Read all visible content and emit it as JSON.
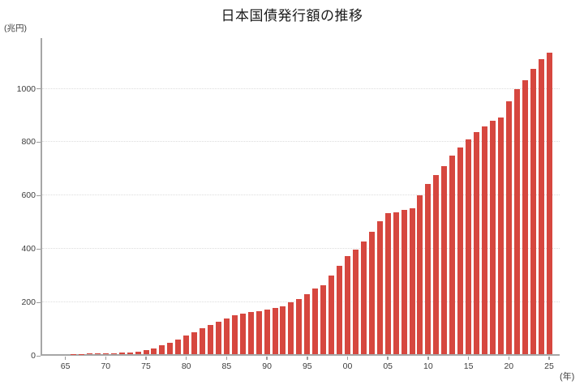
{
  "title": "日本国債発行額の推移",
  "y_unit": "(兆円)",
  "x_unit": "(年)",
  "colors": {
    "bar": "#d6473f",
    "axis": "#a6a6a6",
    "grid": "#dcdcdc",
    "tick_text": "#3d3d3d",
    "title_text": "#1b1b1b",
    "background": "#ffffff"
  },
  "chart_data": {
    "type": "bar",
    "title": "日本国債発行額の推移",
    "ylabel": "(兆円)",
    "xlabel": "(年)",
    "ylim": [
      0,
      1190
    ],
    "grid": "horizontal-dotted",
    "legend": "none",
    "y_ticks": [
      0,
      200,
      400,
      600,
      800,
      1000
    ],
    "x_tick_years": [
      1965,
      1970,
      1975,
      1980,
      1985,
      1990,
      1995,
      2000,
      2005,
      2010,
      2015,
      2020,
      2025
    ],
    "x_tick_labels": [
      "65",
      "70",
      "75",
      "80",
      "85",
      "90",
      "95",
      "00",
      "05",
      "10",
      "15",
      "20",
      "25"
    ],
    "x_start_year": 1965,
    "x_end_year": 2025,
    "years": [
      1965,
      1966,
      1967,
      1968,
      1969,
      1970,
      1971,
      1972,
      1973,
      1974,
      1975,
      1976,
      1977,
      1978,
      1979,
      1980,
      1981,
      1982,
      1983,
      1984,
      1985,
      1986,
      1987,
      1988,
      1989,
      1990,
      1991,
      1992,
      1993,
      1994,
      1995,
      1996,
      1997,
      1998,
      1999,
      2000,
      2001,
      2002,
      2003,
      2004,
      2005,
      2006,
      2007,
      2008,
      2009,
      2010,
      2011,
      2012,
      2013,
      2014,
      2015,
      2016,
      2017,
      2018,
      2019,
      2020,
      2021,
      2022,
      2023,
      2024,
      2025
    ],
    "values": [
      0.2,
      0.9,
      1.5,
      2.1,
      2.5,
      2.8,
      3.9,
      5.8,
      7.6,
      9.7,
      15,
      22,
      32,
      43,
      56,
      70,
      82,
      96,
      110,
      122,
      134,
      145,
      152,
      157,
      161,
      166,
      172,
      178,
      193,
      207,
      225,
      245,
      258,
      295,
      332,
      368,
      392,
      421,
      457,
      499,
      527,
      532,
      541,
      546,
      594,
      636,
      670,
      705,
      744,
      774,
      805,
      831,
      853,
      874,
      887,
      947,
      991,
      1027,
      1068,
      1104,
      1129
    ]
  }
}
